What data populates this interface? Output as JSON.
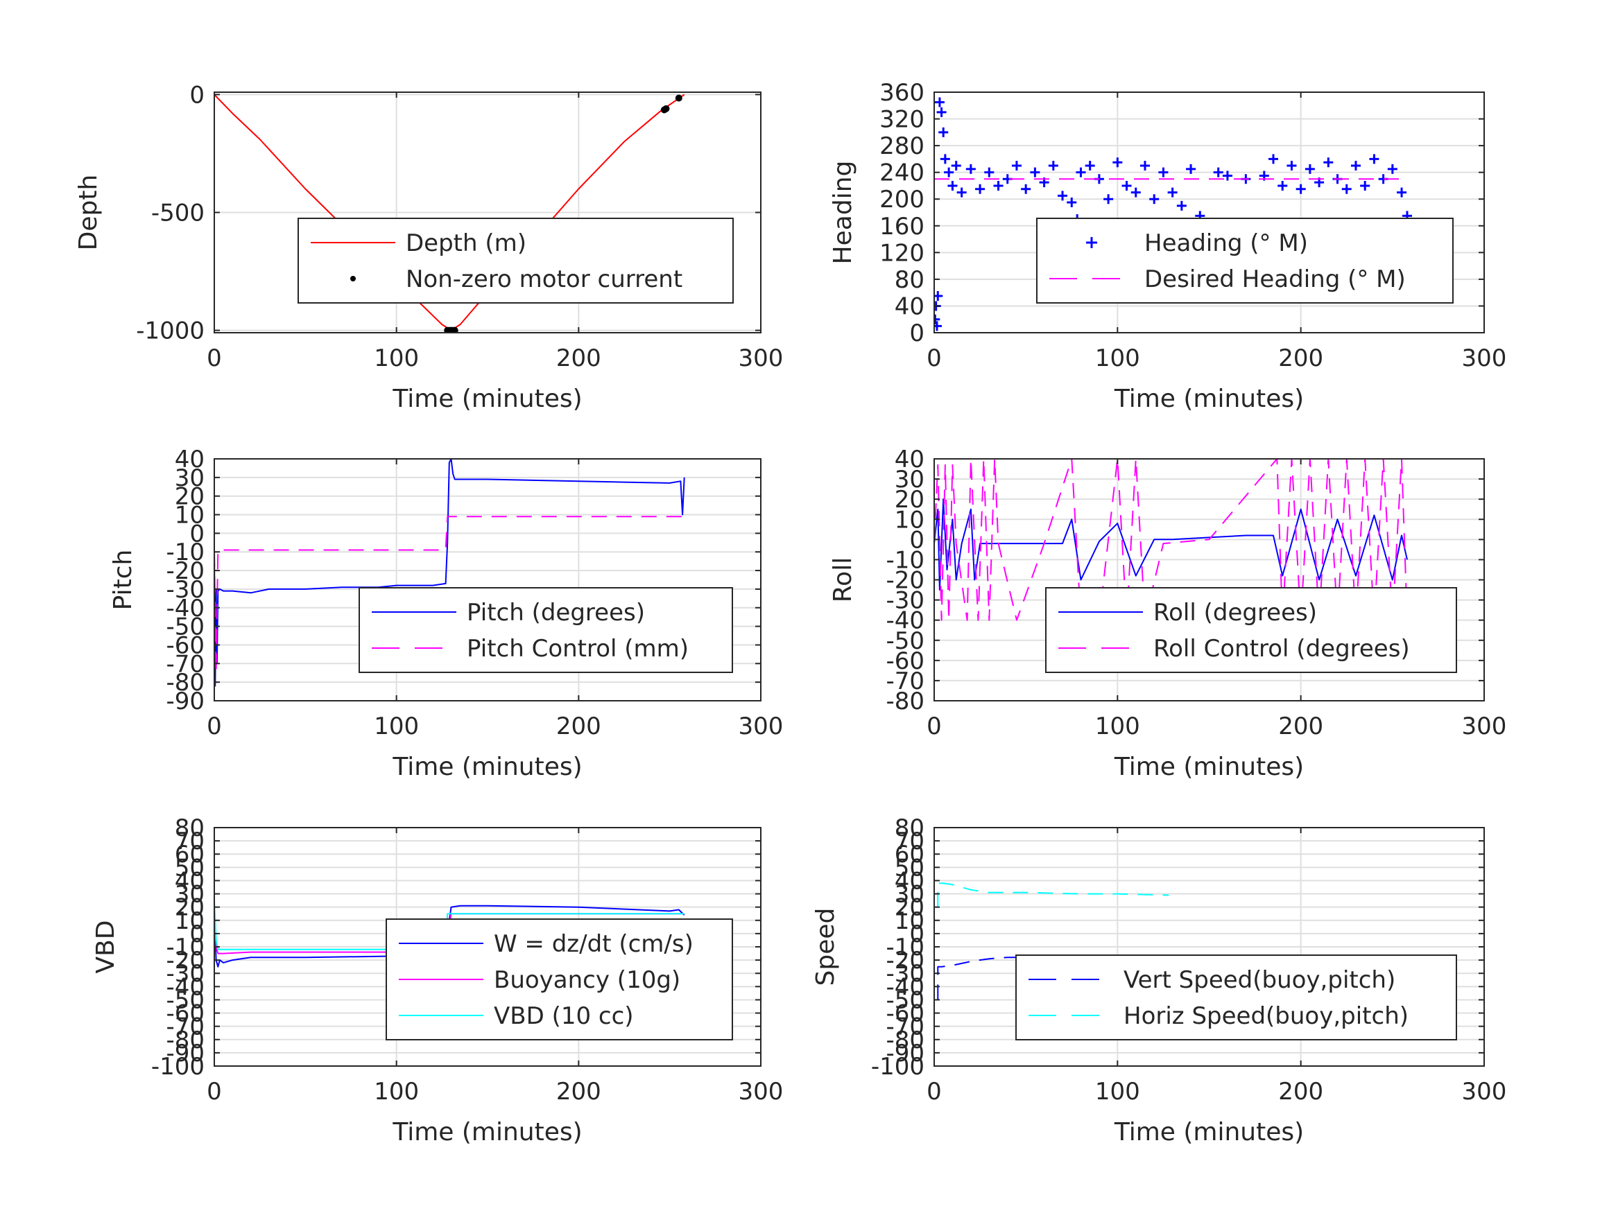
{
  "chart_data": [
    {
      "type": "line",
      "panel": "depth",
      "xlabel": "Time (minutes)",
      "ylabel": "Depth",
      "xlim": [
        0,
        300
      ],
      "ylim": [
        -1010,
        10
      ],
      "xticks": [
        "0",
        "100",
        "200",
        "300"
      ],
      "yticks": [
        {
          "v": 0,
          "label": "0"
        },
        {
          "v": -500,
          "label": "-500"
        },
        {
          "v": -1000,
          "label": "-1000"
        }
      ],
      "grid": true,
      "legend_position": "inside, right of center",
      "series": [
        {
          "name": "Depth (m)",
          "color": "#ff0000",
          "style": "solid",
          "x": [
            0,
            10,
            25,
            50,
            75,
            100,
            115,
            125,
            130,
            135,
            150,
            175,
            200,
            225,
            245,
            258
          ],
          "y": [
            0,
            -80,
            -190,
            -400,
            -590,
            -790,
            -900,
            -975,
            -1000,
            -975,
            -840,
            -620,
            -400,
            -200,
            -70,
            0
          ]
        },
        {
          "name": "Non-zero motor current",
          "color": "#000000",
          "style": "dot",
          "x": [
            128,
            129,
            130,
            131,
            132,
            247,
            248,
            255
          ],
          "y": [
            -1000,
            -1000,
            -1000,
            -1000,
            -1000,
            -65,
            -60,
            -15
          ]
        }
      ]
    },
    {
      "type": "scatter",
      "panel": "heading",
      "xlabel": "Time (minutes)",
      "ylabel": "Heading",
      "xlim": [
        0,
        300
      ],
      "ylim": [
        0,
        360
      ],
      "xticks": [
        "0",
        "100",
        "200",
        "300"
      ],
      "yticks": [
        {
          "v": 0,
          "label": "0"
        },
        {
          "v": 40,
          "label": "40"
        },
        {
          "v": 80,
          "label": "80"
        },
        {
          "v": 120,
          "label": "120"
        },
        {
          "v": 160,
          "label": "160"
        },
        {
          "v": 200,
          "label": "200"
        },
        {
          "v": 240,
          "label": "240"
        },
        {
          "v": 280,
          "label": "280"
        },
        {
          "v": 320,
          "label": "320"
        },
        {
          "v": 360,
          "label": "360"
        }
      ],
      "grid": true,
      "legend_position": "inside, right of center",
      "series": [
        {
          "name": "Heading (° M)",
          "color": "#0000ff",
          "style": "plus",
          "x": [
            0.5,
            1,
            1.5,
            2,
            3,
            4,
            5,
            6,
            8,
            10,
            12,
            15,
            20,
            25,
            30,
            35,
            40,
            45,
            50,
            55,
            60,
            65,
            70,
            75,
            78,
            80,
            85,
            90,
            95,
            100,
            105,
            110,
            115,
            120,
            125,
            130,
            135,
            140,
            145,
            150,
            155,
            160,
            170,
            180,
            185,
            190,
            195,
            200,
            205,
            210,
            215,
            220,
            225,
            230,
            235,
            240,
            245,
            250,
            255,
            258
          ],
          "y": [
            20,
            40,
            10,
            55,
            345,
            330,
            300,
            260,
            240,
            220,
            250,
            210,
            245,
            215,
            240,
            220,
            230,
            250,
            215,
            240,
            225,
            250,
            205,
            195,
            170,
            240,
            250,
            230,
            200,
            255,
            220,
            210,
            250,
            200,
            240,
            210,
            190,
            245,
            175,
            150,
            240,
            235,
            230,
            235,
            260,
            220,
            250,
            215,
            245,
            225,
            255,
            230,
            215,
            250,
            220,
            260,
            230,
            245,
            210,
            175
          ]
        },
        {
          "name": "Desired Heading (° M)",
          "color": "#ff00ff",
          "style": "dash",
          "x": [
            0,
            258
          ],
          "y": [
            230,
            230
          ]
        }
      ]
    },
    {
      "type": "line",
      "panel": "pitch",
      "xlabel": "Time (minutes)",
      "ylabel": "Pitch",
      "xlim": [
        0,
        300
      ],
      "ylim": [
        -90,
        40
      ],
      "xticks": [
        "0",
        "100",
        "200",
        "300"
      ],
      "yticks": [
        {
          "v": 40,
          "label": "40"
        },
        {
          "v": 30,
          "label": "30"
        },
        {
          "v": 20,
          "label": "20"
        },
        {
          "v": 10,
          "label": "10"
        },
        {
          "v": 0,
          "label": "0"
        },
        {
          "v": -10,
          "label": "-10"
        },
        {
          "v": -20,
          "label": "-20"
        },
        {
          "v": -30,
          "label": "-30"
        },
        {
          "v": -40,
          "label": "-40"
        },
        {
          "v": -50,
          "label": "-50"
        },
        {
          "v": -60,
          "label": "-60"
        },
        {
          "v": -70,
          "label": "-70"
        },
        {
          "v": -80,
          "label": "-80"
        },
        {
          "v": -90,
          "label": "-90"
        }
      ],
      "grid": true,
      "legend_position": "inside, right of center",
      "series": [
        {
          "name": "Pitch (degrees)",
          "color": "#0000ff",
          "style": "solid",
          "x": [
            0,
            0.5,
            1,
            1.5,
            2,
            3,
            5,
            10,
            20,
            30,
            50,
            70,
            90,
            100,
            110,
            120,
            127,
            128,
            129,
            130,
            131,
            132,
            135,
            150,
            175,
            200,
            225,
            250,
            256,
            257,
            258
          ],
          "y": [
            -10,
            -82,
            -30,
            -70,
            -31,
            -30,
            -31,
            -31,
            -32,
            -30,
            -30,
            -29,
            -29,
            -28,
            -28,
            -28,
            -27,
            -5,
            38,
            40,
            32,
            29,
            29,
            29,
            28.5,
            28,
            27.5,
            27,
            28,
            10,
            30
          ]
        },
        {
          "name": "Pitch Control (mm)",
          "color": "#ff00ff",
          "style": "dash",
          "x": [
            0,
            1,
            2,
            3,
            127,
            128,
            130,
            258
          ],
          "y": [
            -10,
            -75,
            -9,
            -9,
            -9,
            9,
            9,
            9
          ]
        }
      ]
    },
    {
      "type": "line",
      "panel": "roll",
      "xlabel": "Time (minutes)",
      "ylabel": "Roll",
      "xlim": [
        0,
        300
      ],
      "ylim": [
        -80,
        40
      ],
      "xticks": [
        "0",
        "100",
        "200",
        "300"
      ],
      "yticks": [
        {
          "v": 40,
          "label": "40"
        },
        {
          "v": 30,
          "label": "30"
        },
        {
          "v": 20,
          "label": "20"
        },
        {
          "v": 10,
          "label": "10"
        },
        {
          "v": 0,
          "label": "0"
        },
        {
          "v": -10,
          "label": "-10"
        },
        {
          "v": -20,
          "label": "-20"
        },
        {
          "v": -30,
          "label": "-30"
        },
        {
          "v": -40,
          "label": "-40"
        },
        {
          "v": -50,
          "label": "-50"
        },
        {
          "v": -60,
          "label": "-60"
        },
        {
          "v": -70,
          "label": "-70"
        },
        {
          "v": -80,
          "label": "-80"
        }
      ],
      "grid": true,
      "legend_position": "inside, right of center",
      "series": [
        {
          "name": "Roll (degrees)",
          "color": "#0000ff",
          "style": "solid",
          "x": [
            0,
            2,
            3,
            5,
            7,
            10,
            12,
            15,
            20,
            22,
            25,
            30,
            50,
            60,
            70,
            75,
            80,
            90,
            100,
            110,
            120,
            130,
            150,
            170,
            185,
            190,
            200,
            210,
            220,
            230,
            240,
            250,
            255,
            258
          ],
          "y": [
            -2,
            15,
            -25,
            20,
            -15,
            10,
            -20,
            -2,
            15,
            -20,
            -2,
            -2,
            -2,
            -2,
            -2,
            10,
            -20,
            -1,
            8,
            -18,
            0,
            0,
            1,
            2,
            2,
            -18,
            15,
            -20,
            10,
            -18,
            12,
            -20,
            2,
            -10
          ]
        },
        {
          "name": "Roll Control (degrees)",
          "color": "#ff00ff",
          "style": "dash",
          "x": [
            0,
            2,
            4,
            6,
            8,
            10,
            12,
            18,
            20,
            24,
            27,
            30,
            33,
            35,
            45,
            60,
            75,
            80,
            90,
            100,
            105,
            110,
            115,
            125,
            150,
            187,
            190,
            195,
            200,
            205,
            210,
            215,
            220,
            225,
            230,
            235,
            240,
            245,
            250,
            255,
            258
          ],
          "y": [
            -2,
            37,
            -40,
            37,
            -40,
            37,
            -2,
            -40,
            40,
            -40,
            40,
            -40,
            40,
            -2,
            -40,
            -2,
            40,
            -40,
            -40,
            40,
            -40,
            40,
            -40,
            -2,
            0,
            40,
            -40,
            40,
            -40,
            40,
            -40,
            40,
            -40,
            40,
            -40,
            40,
            -40,
            40,
            -40,
            40,
            -40
          ]
        }
      ]
    },
    {
      "type": "line",
      "panel": "vbd",
      "xlabel": "Time (minutes)",
      "ylabel": "VBD",
      "xlim": [
        0,
        300
      ],
      "ylim": [
        -100,
        80
      ],
      "xticks": [
        "0",
        "100",
        "200",
        "300"
      ],
      "yticks": [
        {
          "v": 80,
          "label": "80"
        },
        {
          "v": 70,
          "label": "70"
        },
        {
          "v": 60,
          "label": "60"
        },
        {
          "v": 50,
          "label": "50"
        },
        {
          "v": 40,
          "label": "40"
        },
        {
          "v": 30,
          "label": "30"
        },
        {
          "v": 20,
          "label": "20"
        },
        {
          "v": 10,
          "label": "10"
        },
        {
          "v": 0,
          "label": "0"
        },
        {
          "v": -10,
          "label": "-10"
        },
        {
          "v": -20,
          "label": "-20"
        },
        {
          "v": -30,
          "label": "-30"
        },
        {
          "v": -40,
          "label": "-40"
        },
        {
          "v": -50,
          "label": "-50"
        },
        {
          "v": -60,
          "label": "-60"
        },
        {
          "v": -70,
          "label": "-70"
        },
        {
          "v": -80,
          "label": "-80"
        },
        {
          "v": -90,
          "label": "-90"
        },
        {
          "v": -100,
          "label": "-100"
        }
      ],
      "grid": true,
      "legend_position": "inside, right of center",
      "series": [
        {
          "name": "W = dz/dt (cm/s)",
          "color": "#0000ff",
          "style": "solid",
          "x": [
            0,
            1,
            2,
            3,
            5,
            10,
            20,
            50,
            100,
            125,
            128,
            130,
            135,
            150,
            200,
            250,
            255,
            258
          ],
          "y": [
            20,
            -20,
            -25,
            -20,
            -22,
            -20,
            -18,
            -18,
            -17,
            -16,
            0,
            20,
            21,
            21,
            20,
            17,
            18,
            14
          ]
        },
        {
          "name": "Buoyancy (10g)",
          "color": "#ff00ff",
          "style": "solid",
          "x": [
            0,
            1,
            2,
            5,
            20,
            50,
            100,
            127,
            130,
            258
          ],
          "y": [
            20,
            -10,
            -15,
            -15,
            -14,
            -14,
            -14,
            -14,
            15,
            15
          ]
        },
        {
          "name": "VBD (10 cc)",
          "color": "#00ffff",
          "style": "solid",
          "x": [
            0,
            1,
            2,
            5,
            127,
            128,
            130,
            258
          ],
          "y": [
            25,
            -5,
            -12,
            -12,
            -12,
            15,
            15,
            15
          ]
        }
      ]
    },
    {
      "type": "line",
      "panel": "speed",
      "xlabel": "Time (minutes)",
      "ylabel": "Speed",
      "xlim": [
        0,
        300
      ],
      "ylim": [
        -100,
        80
      ],
      "xticks": [
        "0",
        "100",
        "200",
        "300"
      ],
      "yticks": [
        {
          "v": 80,
          "label": "80"
        },
        {
          "v": 70,
          "label": "70"
        },
        {
          "v": 60,
          "label": "60"
        },
        {
          "v": 50,
          "label": "50"
        },
        {
          "v": 40,
          "label": "40"
        },
        {
          "v": 30,
          "label": "30"
        },
        {
          "v": 20,
          "label": "20"
        },
        {
          "v": 10,
          "label": "10"
        },
        {
          "v": 0,
          "label": "0"
        },
        {
          "v": -10,
          "label": "-10"
        },
        {
          "v": -20,
          "label": "-20"
        },
        {
          "v": -30,
          "label": "-30"
        },
        {
          "v": -40,
          "label": "-40"
        },
        {
          "v": -50,
          "label": "-50"
        },
        {
          "v": -60,
          "label": "-60"
        },
        {
          "v": -70,
          "label": "-70"
        },
        {
          "v": -80,
          "label": "-80"
        },
        {
          "v": -90,
          "label": "-90"
        },
        {
          "v": -100,
          "label": "-100"
        }
      ],
      "grid": true,
      "legend_position": "inside, right of center",
      "series": [
        {
          "name": "Vert Speed(buoy,pitch)",
          "color": "#0000ff",
          "style": "dash",
          "x": [
            2,
            2,
            2,
            4,
            10,
            20,
            30,
            40,
            60,
            80,
            100,
            128
          ],
          "y": [
            -50,
            -25,
            -25,
            -25,
            -24,
            -21,
            -19,
            -18,
            -18,
            -18,
            -18,
            -17
          ]
        },
        {
          "name": "Horiz Speed(buoy,pitch)",
          "color": "#00ffff",
          "style": "dash",
          "x": [
            2,
            2,
            5,
            10,
            20,
            30,
            50,
            80,
            100,
            128
          ],
          "y": [
            20,
            38,
            38,
            37,
            33,
            31,
            31,
            30,
            30,
            29
          ]
        }
      ]
    }
  ]
}
